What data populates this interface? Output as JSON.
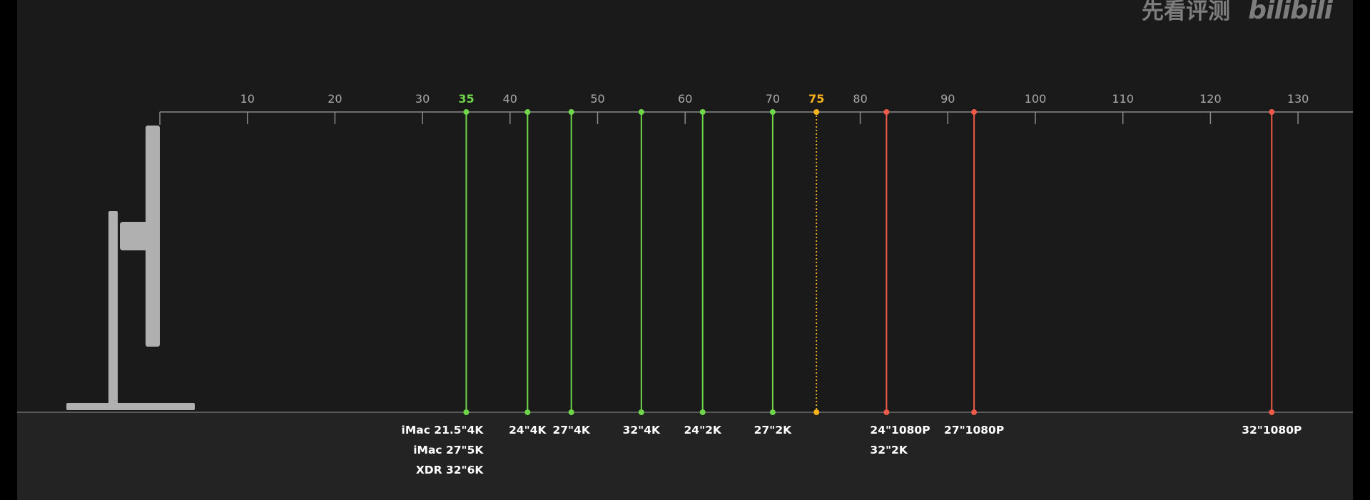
{
  "watermark": {
    "text": "先看评测",
    "logo": "bilibili"
  },
  "colors": {
    "background": "#1a1a1a",
    "floor": "#232323",
    "axis": "#8a8a8a",
    "tick_label": "#a9a9a9",
    "label": "#ffffff",
    "green": "#6fd64a",
    "yellow": "#f7b21c",
    "red": "#ee5a48",
    "monitor": "#b0b0b0"
  },
  "chart_data": {
    "type": "distance-markers",
    "xlim": [
      0,
      134
    ],
    "ticks": [
      10,
      20,
      30,
      40,
      50,
      60,
      70,
      80,
      90,
      100,
      110,
      120,
      130
    ],
    "highlight_ticks": [
      {
        "value": 35,
        "label": "35",
        "color": "green"
      },
      {
        "value": 75,
        "label": "75",
        "color": "yellow"
      }
    ],
    "markers": [
      {
        "value": 35,
        "color": "green",
        "style": "solid",
        "labels": [
          "iMac 21.5\"4K",
          "iMac 27\"5K",
          "XDR 32\"6K"
        ],
        "align": "right"
      },
      {
        "value": 42,
        "color": "green",
        "style": "solid",
        "labels": [
          "24\"4K"
        ],
        "align": "center"
      },
      {
        "value": 47,
        "color": "green",
        "style": "solid",
        "labels": [
          "27\"4K"
        ],
        "align": "center"
      },
      {
        "value": 55,
        "color": "green",
        "style": "solid",
        "labels": [
          "32\"4K"
        ],
        "align": "center"
      },
      {
        "value": 62,
        "color": "green",
        "style": "solid",
        "labels": [
          "24\"2K"
        ],
        "align": "center"
      },
      {
        "value": 70,
        "color": "green",
        "style": "solid",
        "labels": [
          "27\"2K"
        ],
        "align": "center"
      },
      {
        "value": 75,
        "color": "yellow",
        "style": "dotted",
        "labels": [],
        "align": "center"
      },
      {
        "value": 83,
        "color": "red",
        "style": "solid",
        "labels": [
          "24\"1080P",
          "32\"2K"
        ],
        "align": "left"
      },
      {
        "value": 93,
        "color": "red",
        "style": "solid",
        "labels": [
          "27\"1080P"
        ],
        "align": "center"
      },
      {
        "value": 127,
        "color": "red",
        "style": "solid",
        "labels": [
          "32\"1080P"
        ],
        "align": "center"
      }
    ]
  }
}
